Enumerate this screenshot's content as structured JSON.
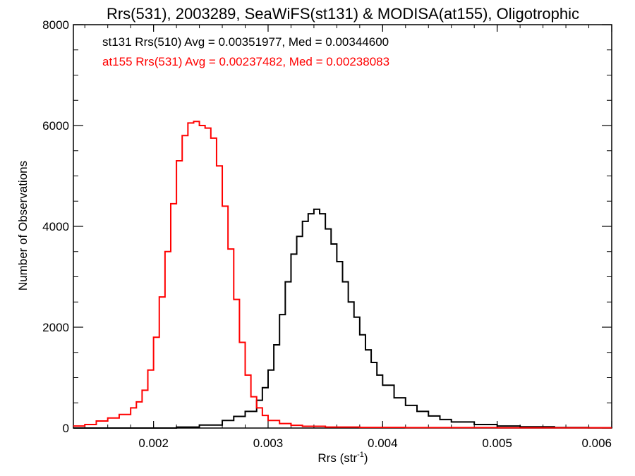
{
  "chart_data": {
    "type": "line",
    "title": "Rrs(531), 2003289, SeaWiFS(st131) & MODISA(at155), Oligotrophic",
    "xlabel_main": "Rrs (str",
    "xlabel_sup": "-1",
    "xlabel_tail": ")",
    "ylabel": "Number of Observations",
    "xlim": [
      0.0013,
      0.006
    ],
    "ylim": [
      0,
      8000
    ],
    "xticks": [
      {
        "value": 0.002,
        "label": "0.002"
      },
      {
        "value": 0.003,
        "label": "0.003"
      },
      {
        "value": 0.004,
        "label": "0.004"
      },
      {
        "value": 0.005,
        "label": "0.005"
      },
      {
        "value": 0.006,
        "label": "0.006"
      }
    ],
    "yticks": [
      {
        "value": 0,
        "label": "0"
      },
      {
        "value": 2000,
        "label": "2000"
      },
      {
        "value": 4000,
        "label": "4000"
      },
      {
        "value": 6000,
        "label": "6000"
      },
      {
        "value": 8000,
        "label": "8000"
      }
    ],
    "grid": false,
    "legend_position": "top-left",
    "series": [
      {
        "label": "st131 Rrs(510) Avg = 0.00351977, Med = 0.00344600",
        "color": "#000000",
        "points": [
          [
            0.0013,
            0
          ],
          [
            0.002,
            0
          ],
          [
            0.0022,
            20
          ],
          [
            0.0024,
            60
          ],
          [
            0.0026,
            150
          ],
          [
            0.0027,
            230
          ],
          [
            0.0028,
            330
          ],
          [
            0.0029,
            550
          ],
          [
            0.00295,
            800
          ],
          [
            0.003,
            1150
          ],
          [
            0.00305,
            1650
          ],
          [
            0.0031,
            2250
          ],
          [
            0.00315,
            2900
          ],
          [
            0.0032,
            3450
          ],
          [
            0.00325,
            3800
          ],
          [
            0.0033,
            4100
          ],
          [
            0.00335,
            4250
          ],
          [
            0.0034,
            4340
          ],
          [
            0.00345,
            4250
          ],
          [
            0.0035,
            3950
          ],
          [
            0.00355,
            3650
          ],
          [
            0.0036,
            3300
          ],
          [
            0.00365,
            2900
          ],
          [
            0.0037,
            2500
          ],
          [
            0.00375,
            2200
          ],
          [
            0.0038,
            1850
          ],
          [
            0.00385,
            1550
          ],
          [
            0.0039,
            1300
          ],
          [
            0.00395,
            1050
          ],
          [
            0.004,
            850
          ],
          [
            0.0041,
            600
          ],
          [
            0.0042,
            450
          ],
          [
            0.0043,
            330
          ],
          [
            0.0044,
            240
          ],
          [
            0.0045,
            170
          ],
          [
            0.0046,
            120
          ],
          [
            0.0048,
            70
          ],
          [
            0.005,
            40
          ],
          [
            0.0052,
            25
          ],
          [
            0.0055,
            10
          ],
          [
            0.0058,
            5
          ],
          [
            0.006,
            0
          ]
        ]
      },
      {
        "label": "at155 Rrs(531) Avg = 0.00237482, Med = 0.00238083",
        "color": "#ff0000",
        "points": [
          [
            0.0013,
            40
          ],
          [
            0.0014,
            70
          ],
          [
            0.0015,
            140
          ],
          [
            0.0016,
            200
          ],
          [
            0.0017,
            270
          ],
          [
            0.0018,
            400
          ],
          [
            0.00185,
            520
          ],
          [
            0.0019,
            750
          ],
          [
            0.00195,
            1150
          ],
          [
            0.002,
            1800
          ],
          [
            0.00205,
            2600
          ],
          [
            0.0021,
            3500
          ],
          [
            0.00215,
            4450
          ],
          [
            0.0022,
            5300
          ],
          [
            0.00225,
            5800
          ],
          [
            0.0023,
            6050
          ],
          [
            0.00235,
            6080
          ],
          [
            0.0024,
            6000
          ],
          [
            0.00245,
            5950
          ],
          [
            0.0025,
            5750
          ],
          [
            0.00255,
            5200
          ],
          [
            0.0026,
            4400
          ],
          [
            0.00265,
            3550
          ],
          [
            0.0027,
            2550
          ],
          [
            0.00275,
            1700
          ],
          [
            0.0028,
            1050
          ],
          [
            0.00285,
            620
          ],
          [
            0.0029,
            400
          ],
          [
            0.00295,
            250
          ],
          [
            0.003,
            150
          ],
          [
            0.0031,
            90
          ],
          [
            0.0032,
            55
          ],
          [
            0.0033,
            35
          ],
          [
            0.0035,
            20
          ],
          [
            0.0038,
            12
          ],
          [
            0.0042,
            8
          ],
          [
            0.005,
            5
          ],
          [
            0.006,
            5
          ]
        ]
      }
    ]
  }
}
